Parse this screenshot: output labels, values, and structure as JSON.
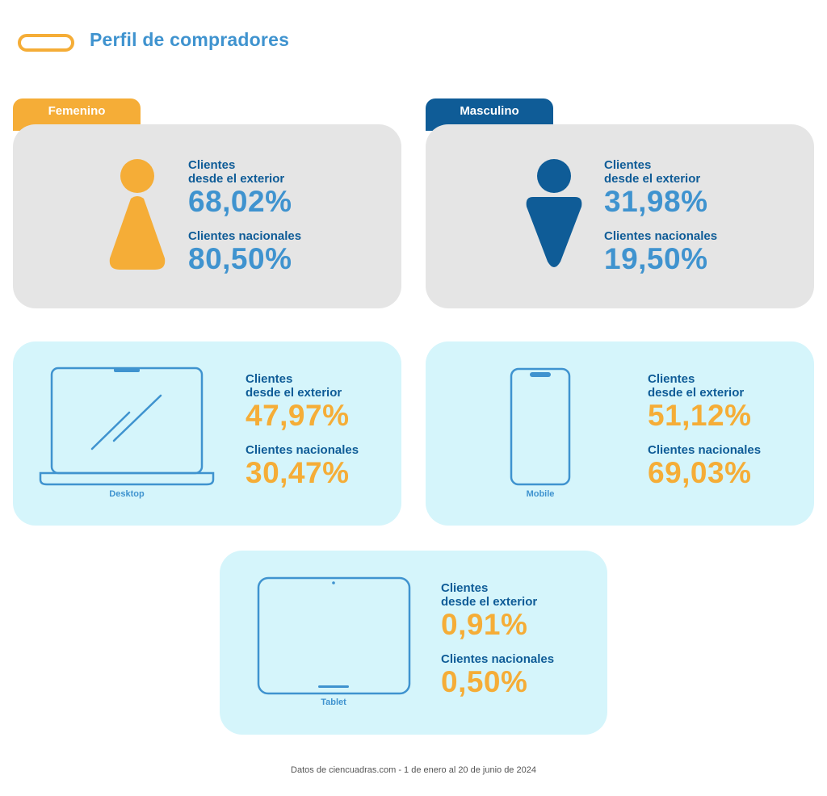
{
  "title": "Perfil de compradores",
  "colors": {
    "orange": "#f5ad37",
    "dark_blue": "#0f5c97",
    "light_blue": "#3f93cf",
    "gray": "#e5e5e5",
    "cyan": "#d5f5fb"
  },
  "gender": {
    "female": {
      "tab": "Femenino",
      "exterior_label_1": "Clientes",
      "exterior_label_2": "desde el exterior",
      "exterior_value": "68,02%",
      "national_label": "Clientes nacionales",
      "national_value": "80,50%",
      "icon": "female-person-icon"
    },
    "male": {
      "tab": "Masculino",
      "exterior_label_1": "Clientes",
      "exterior_label_2": "desde el exterior",
      "exterior_value": "31,98%",
      "national_label": "Clientes nacionales",
      "national_value": "19,50%",
      "icon": "male-person-icon"
    }
  },
  "devices": {
    "desktop": {
      "name": "Desktop",
      "exterior_label_1": "Clientes",
      "exterior_label_2": "desde el exterior",
      "exterior_value": "47,97%",
      "national_label": "Clientes nacionales",
      "national_value": "30,47%",
      "icon": "laptop-icon"
    },
    "mobile": {
      "name": "Mobile",
      "exterior_label_1": "Clientes",
      "exterior_label_2": "desde el exterior",
      "exterior_value": "51,12%",
      "national_label": "Clientes nacionales",
      "national_value": "69,03%",
      "icon": "phone-icon"
    },
    "tablet": {
      "name": "Tablet",
      "exterior_label_1": "Clientes",
      "exterior_label_2": "desde el exterior",
      "exterior_value": "0,91%",
      "national_label": "Clientes nacionales",
      "national_value": "0,50%",
      "icon": "tablet-icon"
    }
  },
  "footer": "Datos de ciencuadras.com - 1 de enero al 20 de junio de 2024"
}
